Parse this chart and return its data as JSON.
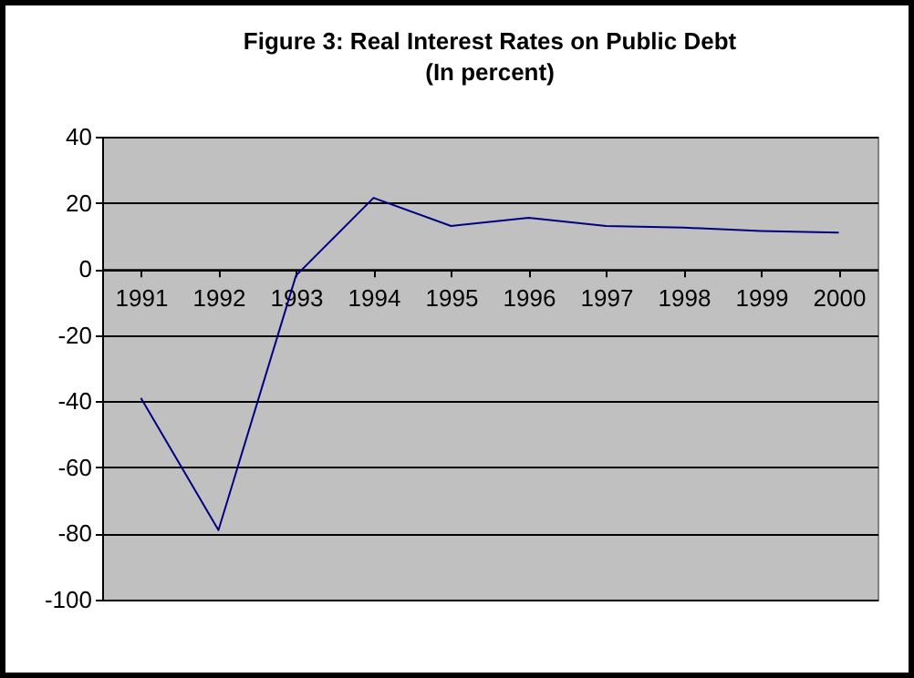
{
  "chart_data": {
    "type": "line",
    "title": "Figure 3: Real Interest Rates on Public Debt",
    "subtitle": "(In percent)",
    "categories": [
      "1991",
      "1992",
      "1993",
      "1994",
      "1995",
      "1996",
      "1997",
      "1998",
      "1999",
      "2000"
    ],
    "series": [
      {
        "color": "#000080",
        "values": [
          -39,
          -79,
          -2,
          21.5,
          13,
          15.5,
          13,
          12.5,
          11.5,
          11
        ]
      }
    ],
    "ylim": [
      -100,
      40
    ],
    "yticks": [
      -100,
      -80,
      -60,
      -40,
      -20,
      0,
      20,
      40
    ],
    "grid": "y",
    "marker": "none",
    "line_style": "solid"
  }
}
